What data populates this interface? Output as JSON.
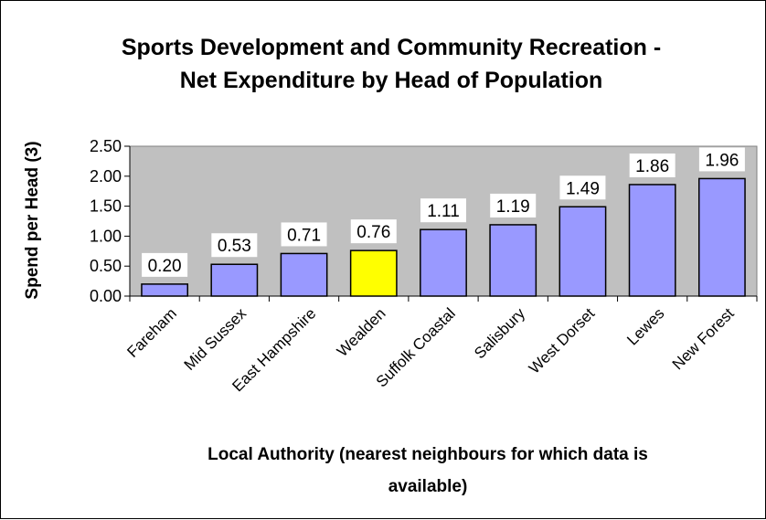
{
  "chart_data": {
    "type": "bar",
    "title_lines": [
      "Sports Development and Community Recreation -",
      "Net Expenditure by Head of Population"
    ],
    "ylabel": "Spend per Head (3)",
    "xlabel_lines": [
      "Local Authority (nearest neighbours for which data is",
      "available)"
    ],
    "categories": [
      "Fareham",
      "Mid Sussex",
      "East Hampshire",
      "Wealden",
      "Suffolk Coastal",
      "Salisbury",
      "West Dorset",
      "Lewes",
      "New Forest"
    ],
    "values": [
      0.2,
      0.53,
      0.71,
      0.76,
      1.11,
      1.19,
      1.49,
      1.86,
      1.96
    ],
    "data_labels": [
      "0.20",
      "0.53",
      "0.71",
      "0.76",
      "1.11",
      "1.19",
      "1.49",
      "1.86",
      "1.96"
    ],
    "ylim": [
      0,
      2.5
    ],
    "yticks": [
      0,
      0.5,
      1.0,
      1.5,
      2.0,
      2.5
    ],
    "ytick_labels": [
      "0.00",
      "0.50",
      "1.00",
      "1.50",
      "2.00",
      "2.50"
    ],
    "grid": false,
    "legend": "none",
    "plot_background": "#c0c0c0",
    "bar_color": "#9999ff",
    "highlight_category": "Wealden",
    "highlight_color": "#ffff00"
  }
}
